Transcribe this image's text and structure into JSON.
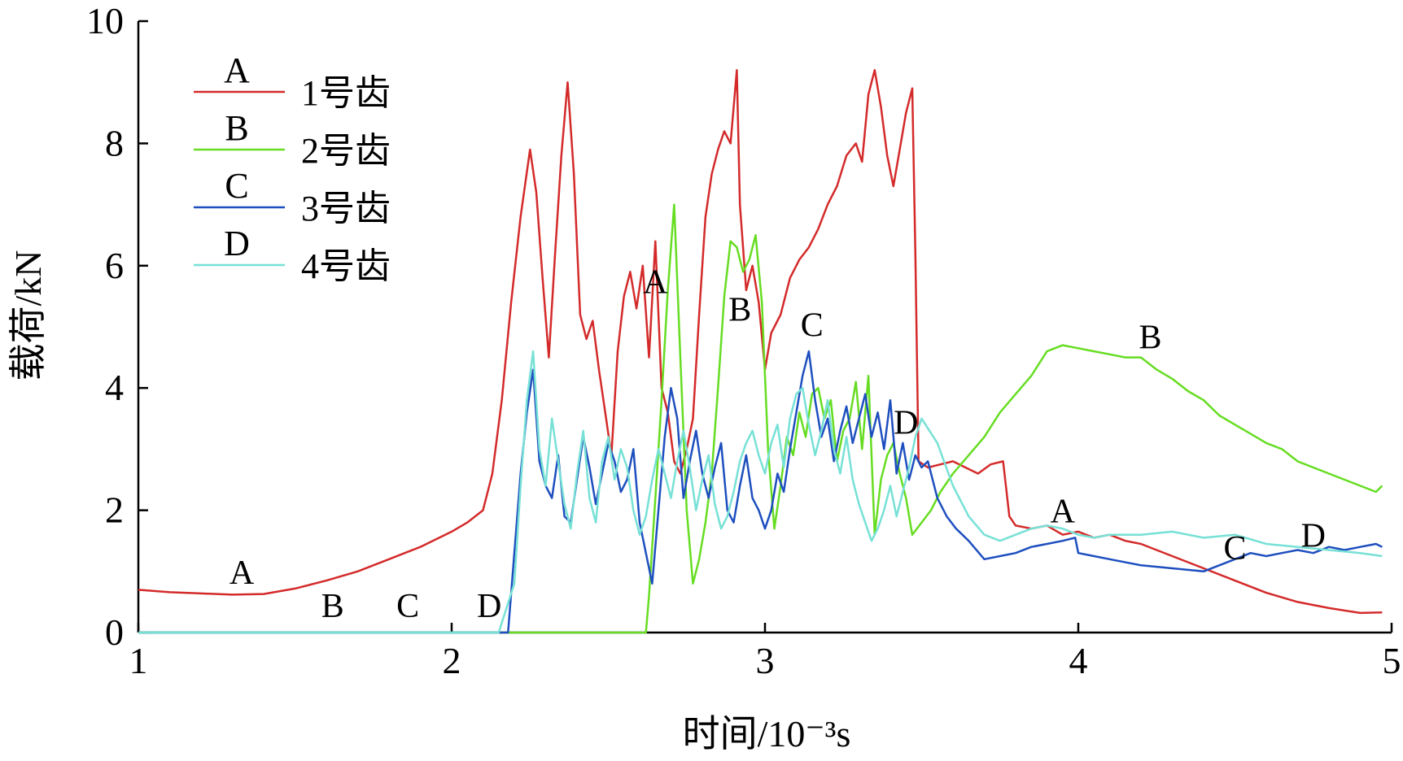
{
  "chart_data": {
    "type": "line",
    "xlabel": "时间/10⁻³s",
    "ylabel": "载荷/kN",
    "xlim": [
      1,
      5
    ],
    "ylim": [
      0,
      10
    ],
    "xticks": [
      "1",
      "2",
      "3",
      "4",
      "5"
    ],
    "yticks": [
      "0",
      "2",
      "4",
      "6",
      "8",
      "10"
    ],
    "grid": false,
    "legend_position": "top-left",
    "series": [
      {
        "name": "1号齿",
        "key": "A",
        "color": "#d42a2a",
        "labels": [
          [
            1.33,
            0.8
          ],
          [
            2.65,
            5.55
          ],
          [
            3.95,
            1.8
          ]
        ],
        "x": [
          1.0,
          1.1,
          1.2,
          1.3,
          1.4,
          1.5,
          1.6,
          1.7,
          1.8,
          1.9,
          2.0,
          2.05,
          2.1,
          2.13,
          2.16,
          2.19,
          2.22,
          2.25,
          2.27,
          2.29,
          2.31,
          2.33,
          2.35,
          2.37,
          2.39,
          2.41,
          2.43,
          2.45,
          2.47,
          2.49,
          2.51,
          2.53,
          2.55,
          2.57,
          2.59,
          2.61,
          2.63,
          2.65,
          2.67,
          2.69,
          2.71,
          2.73,
          2.75,
          2.77,
          2.79,
          2.81,
          2.83,
          2.85,
          2.87,
          2.89,
          2.91,
          2.92,
          2.94,
          2.96,
          2.98,
          3.0,
          3.02,
          3.05,
          3.08,
          3.11,
          3.14,
          3.17,
          3.2,
          3.23,
          3.26,
          3.29,
          3.31,
          3.33,
          3.35,
          3.37,
          3.39,
          3.41,
          3.43,
          3.45,
          3.47,
          3.48,
          3.49,
          3.52,
          3.56,
          3.6,
          3.64,
          3.68,
          3.72,
          3.76,
          3.78,
          3.8,
          3.85,
          3.9,
          3.95,
          4.0,
          4.05,
          4.1,
          4.15,
          4.2,
          4.3,
          4.4,
          4.5,
          4.6,
          4.7,
          4.8,
          4.9,
          4.97
        ],
        "y": [
          0.7,
          0.66,
          0.64,
          0.62,
          0.63,
          0.72,
          0.85,
          1.0,
          1.2,
          1.4,
          1.65,
          1.8,
          2.0,
          2.6,
          3.8,
          5.4,
          6.8,
          7.9,
          7.2,
          5.8,
          4.5,
          6.2,
          7.8,
          9.0,
          7.5,
          5.2,
          4.8,
          5.1,
          4.3,
          3.6,
          2.9,
          4.6,
          5.5,
          5.9,
          5.3,
          6.0,
          4.5,
          6.4,
          4.0,
          3.6,
          2.8,
          2.6,
          3.0,
          3.5,
          5.2,
          6.8,
          7.5,
          7.9,
          8.2,
          8.0,
          9.2,
          7.0,
          5.6,
          6.0,
          5.4,
          4.3,
          4.9,
          5.2,
          5.8,
          6.1,
          6.3,
          6.6,
          7.0,
          7.3,
          7.8,
          8.0,
          7.7,
          8.8,
          9.2,
          8.6,
          7.8,
          7.3,
          7.9,
          8.5,
          8.9,
          6.2,
          2.8,
          2.7,
          2.75,
          2.8,
          2.7,
          2.6,
          2.75,
          2.8,
          1.9,
          1.75,
          1.7,
          1.75,
          1.6,
          1.65,
          1.55,
          1.6,
          1.5,
          1.45,
          1.25,
          1.05,
          0.85,
          0.65,
          0.5,
          0.4,
          0.32,
          0.33
        ]
      },
      {
        "name": "2号齿",
        "key": "B",
        "color": "#66dd22",
        "labels": [
          [
            1.62,
            0.25
          ],
          [
            2.92,
            5.1
          ],
          [
            4.23,
            4.65
          ]
        ],
        "x": [
          1.0,
          2.0,
          2.62,
          2.63,
          2.65,
          2.67,
          2.69,
          2.71,
          2.73,
          2.75,
          2.77,
          2.79,
          2.81,
          2.83,
          2.85,
          2.87,
          2.89,
          2.91,
          2.93,
          2.95,
          2.97,
          2.99,
          3.01,
          3.03,
          3.05,
          3.07,
          3.09,
          3.11,
          3.13,
          3.15,
          3.17,
          3.19,
          3.21,
          3.23,
          3.25,
          3.27,
          3.29,
          3.31,
          3.33,
          3.35,
          3.37,
          3.39,
          3.41,
          3.43,
          3.45,
          3.47,
          3.5,
          3.53,
          3.56,
          3.6,
          3.65,
          3.7,
          3.75,
          3.8,
          3.85,
          3.9,
          3.95,
          4.0,
          4.05,
          4.1,
          4.15,
          4.2,
          4.25,
          4.3,
          4.35,
          4.4,
          4.45,
          4.5,
          4.55,
          4.6,
          4.65,
          4.7,
          4.75,
          4.8,
          4.85,
          4.9,
          4.95,
          4.97
        ],
        "y": [
          0.0,
          0.0,
          0.0,
          0.6,
          2.2,
          3.8,
          5.6,
          7.0,
          4.5,
          2.0,
          0.8,
          1.2,
          1.8,
          2.6,
          4.0,
          5.5,
          6.4,
          6.3,
          5.9,
          6.1,
          6.5,
          5.4,
          3.0,
          1.7,
          2.4,
          3.2,
          2.9,
          3.6,
          3.2,
          3.9,
          4.0,
          3.5,
          3.8,
          2.8,
          3.3,
          3.5,
          4.1,
          3.0,
          4.2,
          1.6,
          2.5,
          2.9,
          3.1,
          2.6,
          2.2,
          1.6,
          1.8,
          2.0,
          2.3,
          2.6,
          2.9,
          3.2,
          3.6,
          3.9,
          4.2,
          4.6,
          4.7,
          4.65,
          4.6,
          4.55,
          4.5,
          4.5,
          4.3,
          4.15,
          3.95,
          3.8,
          3.55,
          3.4,
          3.25,
          3.1,
          3.0,
          2.8,
          2.7,
          2.6,
          2.5,
          2.4,
          2.3,
          2.4
        ]
      },
      {
        "name": "3号齿",
        "key": "C",
        "color": "#1e4fbf",
        "labels": [
          [
            1.86,
            0.25
          ],
          [
            3.15,
            4.85
          ],
          [
            4.5,
            1.2
          ]
        ],
        "x": [
          1.0,
          2.0,
          2.18,
          2.22,
          2.24,
          2.26,
          2.28,
          2.3,
          2.32,
          2.34,
          2.36,
          2.38,
          2.4,
          2.42,
          2.44,
          2.46,
          2.48,
          2.5,
          2.52,
          2.54,
          2.56,
          2.58,
          2.6,
          2.62,
          2.64,
          2.66,
          2.68,
          2.7,
          2.72,
          2.74,
          2.76,
          2.78,
          2.8,
          2.82,
          2.84,
          2.86,
          2.88,
          2.9,
          2.92,
          2.94,
          2.96,
          2.98,
          3.0,
          3.02,
          3.04,
          3.06,
          3.08,
          3.1,
          3.12,
          3.14,
          3.16,
          3.18,
          3.2,
          3.22,
          3.24,
          3.26,
          3.28,
          3.3,
          3.32,
          3.34,
          3.36,
          3.38,
          3.4,
          3.42,
          3.44,
          3.46,
          3.48,
          3.5,
          3.52,
          3.55,
          3.58,
          3.61,
          3.65,
          3.7,
          3.75,
          3.8,
          3.85,
          3.9,
          3.95,
          3.99,
          4.0,
          4.05,
          4.1,
          4.2,
          4.3,
          4.4,
          4.45,
          4.5,
          4.55,
          4.6,
          4.65,
          4.7,
          4.75,
          4.8,
          4.85,
          4.9,
          4.95,
          4.97
        ],
        "y": [
          0.0,
          0.0,
          0.0,
          2.6,
          3.6,
          4.3,
          2.8,
          2.4,
          2.2,
          2.9,
          1.9,
          1.8,
          2.5,
          3.2,
          2.7,
          2.1,
          2.6,
          3.1,
          2.8,
          2.3,
          2.5,
          3.0,
          1.8,
          1.3,
          0.8,
          2.0,
          3.2,
          4.0,
          3.5,
          2.2,
          2.8,
          3.3,
          2.6,
          2.2,
          2.7,
          3.1,
          2.0,
          1.8,
          2.4,
          2.9,
          2.2,
          2.0,
          1.7,
          2.0,
          2.6,
          2.3,
          3.0,
          3.6,
          4.2,
          4.6,
          3.8,
          3.2,
          3.5,
          2.8,
          3.3,
          3.7,
          3.1,
          3.5,
          3.9,
          3.2,
          3.6,
          3.0,
          3.8,
          2.6,
          3.1,
          2.5,
          2.9,
          2.7,
          2.8,
          2.2,
          1.9,
          1.7,
          1.5,
          1.2,
          1.25,
          1.3,
          1.4,
          1.45,
          1.5,
          1.55,
          1.3,
          1.25,
          1.2,
          1.1,
          1.05,
          1.0,
          1.1,
          1.2,
          1.3,
          1.25,
          1.3,
          1.35,
          1.3,
          1.4,
          1.35,
          1.4,
          1.45,
          1.4
        ]
      },
      {
        "name": "4号齿",
        "key": "D",
        "color": "#77e1d6",
        "labels": [
          [
            2.12,
            0.25
          ],
          [
            3.45,
            3.25
          ],
          [
            4.75,
            1.4
          ]
        ],
        "x": [
          1.0,
          2.0,
          2.15,
          2.2,
          2.22,
          2.24,
          2.26,
          2.28,
          2.3,
          2.32,
          2.34,
          2.36,
          2.38,
          2.4,
          2.42,
          2.44,
          2.46,
          2.48,
          2.5,
          2.52,
          2.54,
          2.56,
          2.58,
          2.6,
          2.62,
          2.64,
          2.66,
          2.68,
          2.7,
          2.72,
          2.74,
          2.76,
          2.78,
          2.8,
          2.82,
          2.84,
          2.86,
          2.88,
          2.9,
          2.92,
          2.94,
          2.96,
          2.98,
          3.0,
          3.02,
          3.04,
          3.06,
          3.08,
          3.1,
          3.12,
          3.14,
          3.16,
          3.18,
          3.2,
          3.22,
          3.24,
          3.26,
          3.28,
          3.3,
          3.32,
          3.34,
          3.36,
          3.38,
          3.4,
          3.42,
          3.44,
          3.46,
          3.48,
          3.5,
          3.55,
          3.6,
          3.65,
          3.7,
          3.75,
          3.8,
          3.85,
          3.9,
          3.95,
          4.0,
          4.05,
          4.1,
          4.2,
          4.3,
          4.4,
          4.5,
          4.6,
          4.7,
          4.8,
          4.9,
          4.97
        ],
        "y": [
          0.0,
          0.0,
          0.0,
          0.8,
          2.4,
          3.8,
          4.6,
          3.0,
          2.4,
          3.5,
          2.8,
          2.1,
          1.7,
          2.6,
          3.3,
          2.2,
          1.8,
          2.8,
          3.2,
          2.5,
          3.0,
          2.7,
          2.0,
          1.6,
          1.9,
          2.5,
          3.0,
          2.6,
          2.2,
          2.8,
          3.3,
          2.7,
          2.0,
          2.5,
          2.9,
          2.1,
          1.7,
          1.9,
          2.3,
          2.8,
          3.1,
          3.3,
          2.9,
          2.6,
          3.1,
          3.4,
          2.7,
          3.5,
          3.9,
          4.0,
          3.4,
          2.9,
          3.3,
          3.8,
          3.0,
          2.6,
          3.2,
          2.5,
          2.1,
          1.8,
          1.5,
          1.7,
          2.0,
          2.4,
          1.9,
          2.3,
          2.7,
          3.2,
          3.5,
          3.1,
          2.4,
          1.9,
          1.6,
          1.5,
          1.6,
          1.7,
          1.75,
          1.7,
          1.6,
          1.55,
          1.6,
          1.6,
          1.65,
          1.55,
          1.6,
          1.45,
          1.4,
          1.35,
          1.3,
          1.25
        ]
      }
    ]
  }
}
